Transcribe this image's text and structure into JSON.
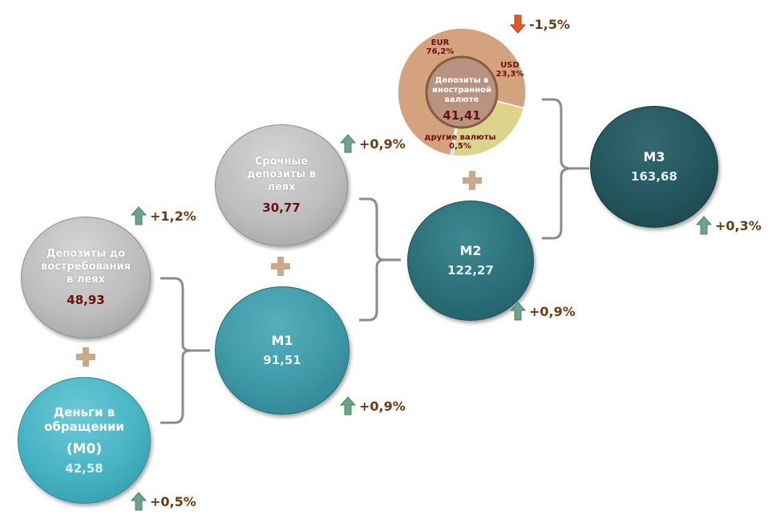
{
  "nodes": {
    "m0": {
      "label_line1": "Деньги в",
      "label_line2": "обращении",
      "code": "(M0)",
      "value": "42,58",
      "change": "+0,5%",
      "direction": "up"
    },
    "demand": {
      "label_line1": "Депозиты до",
      "label_line2": "востребования",
      "label_line3": "в леях",
      "value": "48,93",
      "change": "+1,2%",
      "direction": "up"
    },
    "m1": {
      "label": "M1",
      "value": "91,51",
      "change": "+0,9%",
      "direction": "up"
    },
    "term": {
      "label_line1": "Срочные",
      "label_line2": "депозиты в",
      "label_line3": "леях",
      "value": "30,77",
      "change": "+0,9%",
      "direction": "up"
    },
    "m2": {
      "label": "M2",
      "value": "122,27",
      "change": "+0,9%",
      "direction": "up"
    },
    "foreign": {
      "label_line1": "Депозиты в",
      "label_line2": "иностранной",
      "label_line3": "валюте",
      "value": "41,41",
      "change": "-1,5%",
      "direction": "down"
    },
    "m3": {
      "label": "M3",
      "value": "163,68",
      "change": "+0,3%",
      "direction": "up"
    }
  },
  "chart_data": {
    "type": "pie",
    "categories": [
      "EUR",
      "USD",
      "другие валюты"
    ],
    "values": [
      76.2,
      23.3,
      0.5
    ],
    "labels": [
      "76,2%",
      "23,3%",
      "0,5%"
    ],
    "colors": [
      "#d4a27c",
      "#dcd38c",
      "#b0b0b0"
    ]
  },
  "colors": {
    "up_arrow": "#6aa58a",
    "down_arrow": "#e05a2a",
    "bracket": "#8c8c8c",
    "plus": "#c9a98a",
    "value_text": "#6b0f0f",
    "change_text": "#6b3b12"
  }
}
